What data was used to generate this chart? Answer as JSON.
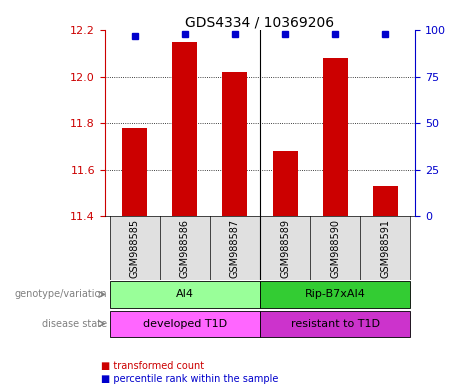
{
  "title": "GDS4334 / 10369206",
  "samples": [
    "GSM988585",
    "GSM988586",
    "GSM988587",
    "GSM988589",
    "GSM988590",
    "GSM988591"
  ],
  "transformed_counts": [
    11.78,
    12.15,
    12.02,
    11.68,
    12.08,
    11.53
  ],
  "percentile_ranks": [
    97,
    98,
    98,
    98,
    98,
    98
  ],
  "ylim_left": [
    11.4,
    12.2
  ],
  "ylim_right": [
    0,
    100
  ],
  "yticks_left": [
    11.4,
    11.6,
    11.8,
    12.0,
    12.2
  ],
  "yticks_right": [
    0,
    25,
    50,
    75,
    100
  ],
  "bar_color": "#cc0000",
  "percentile_color": "#0000cc",
  "groups": [
    {
      "label": "AI4",
      "start": 0,
      "end": 3,
      "color": "#99ff99"
    },
    {
      "label": "Rip-B7xAI4",
      "start": 3,
      "end": 6,
      "color": "#33cc33"
    }
  ],
  "disease_states": [
    {
      "label": "developed T1D",
      "start": 0,
      "end": 3,
      "color": "#ff66ff"
    },
    {
      "label": "resistant to T1D",
      "start": 3,
      "end": 6,
      "color": "#cc33cc"
    }
  ],
  "row_labels": [
    "genotype/variation",
    "disease state"
  ],
  "legend_items": [
    {
      "label": "transformed count",
      "color": "#cc0000"
    },
    {
      "label": "percentile rank within the sample",
      "color": "#0000cc"
    }
  ]
}
